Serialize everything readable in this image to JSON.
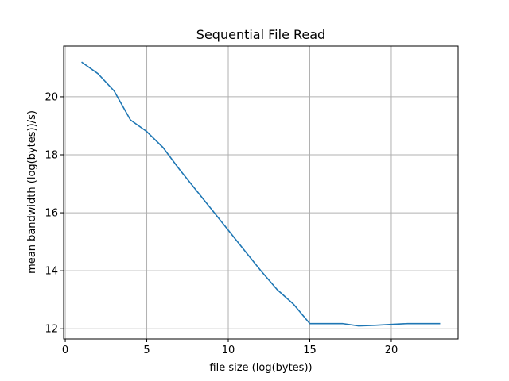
{
  "chart_data": {
    "type": "line",
    "title": "Sequential File Read",
    "xlabel": "file size (log(bytes))",
    "ylabel": "mean bandwidth (log(bytes))/s)",
    "xlim": [
      -0.1,
      24.1
    ],
    "ylim": [
      11.65,
      21.75
    ],
    "xticks": [
      0,
      5,
      10,
      15,
      20
    ],
    "yticks": [
      12,
      14,
      16,
      18,
      20
    ],
    "grid": true,
    "series": [
      {
        "color": "#1f77b4",
        "x": [
          1,
          2,
          3,
          4,
          5,
          6,
          7,
          8,
          9,
          10,
          11,
          12,
          13,
          14,
          15,
          16,
          17,
          18,
          19,
          20,
          21,
          22,
          23
        ],
        "y": [
          21.2,
          20.8,
          20.2,
          19.2,
          18.8,
          18.25,
          17.5,
          16.8,
          16.1,
          15.4,
          14.7,
          14.0,
          13.35,
          12.85,
          12.18,
          12.18,
          12.18,
          12.1,
          12.12,
          12.15,
          12.18,
          12.18,
          12.18
        ]
      }
    ]
  }
}
